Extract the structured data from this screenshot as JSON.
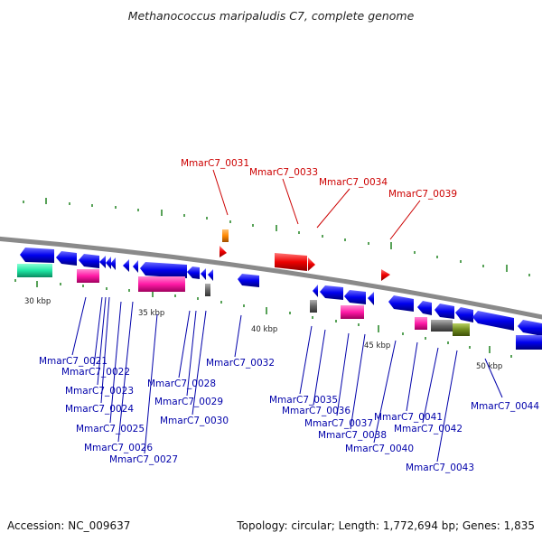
{
  "title": "Methanococcus maripaludis C7, complete genome",
  "accession_label": "Accession: NC_009637",
  "stats_label": "Topology: circular; Length: 1,772,694 bp; Genes: 1,835",
  "colors": {
    "backbone": "#888888",
    "forward_gene": "#ff0000",
    "reverse_gene": "#0000ff",
    "highlight_gene": "#ff8800",
    "ticks": "#2e8b2e",
    "red_label": "#cc0000",
    "blue_label": "#0000aa"
  },
  "scale_labels": [
    "30 kbp",
    "35 kbp",
    "40 kbp",
    "45 kbp",
    "50 kbp"
  ],
  "top_labels": [
    "MmarC7_0031",
    "MmarC7_0033",
    "MmarC7_0034",
    "MmarC7_0039"
  ],
  "bottom_labels": [
    "MmarC7_0021",
    "MmarC7_0022",
    "MmarC7_0023",
    "MmarC7_0024",
    "MmarC7_0025",
    "MmarC7_0026",
    "MmarC7_0027",
    "MmarC7_0028",
    "MmarC7_0029",
    "MmarC7_0030",
    "MmarC7_0032",
    "MmarC7_0035",
    "MmarC7_0036",
    "MmarC7_0037",
    "MmarC7_0038",
    "MmarC7_0040",
    "MmarC7_0041",
    "MmarC7_0042",
    "MmarC7_0043",
    "MmarC7_0044"
  ]
}
